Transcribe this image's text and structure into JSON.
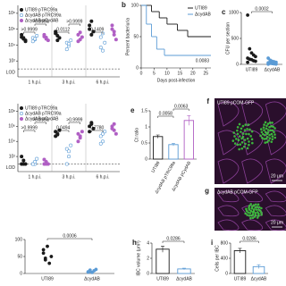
{
  "chart_data": [
    {
      "type": "strip",
      "yscale": "log",
      "ylim": [
        1,
        1000000000
      ],
      "yticks": [
        {
          "value": 100,
          "label": "10²"
        },
        {
          "value": 10000,
          "label": "10⁴"
        },
        {
          "value": 1000000,
          "label": "10⁶"
        },
        {
          "value": 100000000,
          "label": "10⁸"
        }
      ],
      "lod": {
        "value": 10,
        "label": "LOD"
      },
      "groups": [
        "1 h.p.i.",
        "3 h.p.i.",
        "6 h.p.i."
      ],
      "series": [
        {
          "name": "UTI89 pTRC99a",
          "color": "#1a1a1a",
          "values": [
            [
              100000,
              60000,
              30000,
              200000,
              80000,
              40000
            ],
            [
              300000,
              150000,
              80000,
              500000,
              40000
            ],
            [
              3000000,
              10000000,
              500000,
              1000000,
              200000
            ]
          ]
        },
        {
          "name": "ΔcydAB pTRC99a",
          "color": "#5b9bd5",
          "values": [
            [
              80000,
              50000,
              150000,
              30000,
              60000
            ],
            [
              20000,
              8000,
              40000,
              3000,
              15000
            ],
            [
              100000,
              2000,
              20000,
              5000,
              300000
            ]
          ]
        },
        {
          "name": "ΔcydAB pCydAB",
          "color": "#b05fc4",
          "values": [
            [
              120000,
              60000,
              40000,
              200000,
              90000
            ],
            [
              200000,
              50000,
              100000,
              30000,
              400000
            ],
            [
              1000000,
              200000,
              50000,
              3000000,
              500000
            ]
          ]
        }
      ],
      "pvalues": [
        [
          ">0.9999",
          ">0.9999"
        ],
        [
          "0.0112",
          ">0.9999"
        ],
        [
          "0.1409"
        ]
      ]
    },
    {
      "type": "step",
      "letter": "b",
      "ylabel": "Percent bacteriuria",
      "xlabel": "Days post-infection",
      "xlim": [
        0,
        27
      ],
      "xticks": [
        0,
        5,
        10,
        15,
        20,
        25
      ],
      "ylim": [
        0,
        100
      ],
      "yticks": [
        0,
        50,
        100
      ],
      "series": [
        {
          "name": "UTI89",
          "color": "#1a1a1a",
          "x": [
            0,
            4,
            7,
            10,
            14,
            18,
            27
          ],
          "values": [
            100,
            90,
            80,
            70,
            60,
            50,
            50
          ]
        },
        {
          "name": "ΔcydAB",
          "color": "#5b9bd5",
          "x": [
            0,
            2,
            4,
            6,
            9,
            27
          ],
          "values": [
            100,
            70,
            50,
            30,
            20,
            20
          ]
        }
      ],
      "pvalue": "0.0083"
    },
    {
      "type": "strip",
      "letter": "c",
      "ylabel": "CFU per section",
      "ylim": [
        0,
        1000
      ],
      "yticks": [
        0,
        500,
        1000
      ],
      "series": [
        {
          "name": "UTI89",
          "color": "#1a1a1a",
          "values": [
            950,
            300,
            220,
            180,
            150,
            120,
            100,
            90,
            70,
            60,
            40
          ]
        },
        {
          "name": "ΔcydAB",
          "color": "#5b9bd5",
          "values": [
            120,
            80,
            60,
            50,
            40,
            30,
            20,
            15,
            10,
            5,
            3
          ]
        }
      ],
      "pvalue": "0.0002"
    },
    {
      "type": "strip",
      "yscale": "log",
      "ylim": [
        1,
        1000000000
      ],
      "yticks": [
        {
          "value": 100,
          "label": "10²"
        },
        {
          "value": 10000,
          "label": "10⁴"
        },
        {
          "value": 1000000,
          "label": "10⁶"
        },
        {
          "value": 100000000,
          "label": "10⁸"
        }
      ],
      "lod": {
        "value": 10,
        "label": "LOD"
      },
      "groups": [
        "1 h.p.i.",
        "3 h.p.i.",
        "6 h.p.i."
      ],
      "series": [
        {
          "name": "UTI89 pTRC99a",
          "color": "#1a1a1a",
          "values": [
            [
              10,
              30,
              10,
              100,
              10
            ],
            [
              200000,
              100000,
              300000,
              50000,
              80000
            ],
            [
              1000000,
              3000000,
              500000,
              200000,
              2000000
            ]
          ]
        },
        {
          "name": "ΔcydAB pTRC99a",
          "color": "#5b9bd5",
          "values": [
            [
              10,
              10,
              50,
              10,
              20
            ],
            [
              1000,
              100,
              3000,
              10,
              500
            ],
            [
              50000,
              10000,
              200000,
              5000,
              100000
            ]
          ]
        },
        {
          "name": "ΔcydAB pCydAB",
          "color": "#b05fc4",
          "values": [
            [
              10,
              20,
              10,
              40,
              10
            ],
            [
              100000,
              30000,
              200000,
              10000,
              50000
            ],
            [
              500000,
              2000000,
              100000,
              1000000,
              300000
            ]
          ]
        }
      ],
      "pvalues": [
        [
          ">0.9999",
          ">0.9999"
        ],
        [
          "0.0494",
          ">0.9999"
        ],
        [
          "0.7780"
        ]
      ]
    },
    {
      "type": "bar",
      "letter": "e",
      "ylabel": "Ct ratio",
      "ylim": [
        0,
        1.5
      ],
      "yticks": [
        0,
        0.5,
        1,
        1.5
      ],
      "series": [
        {
          "name": "UTI89",
          "color": "#1a1a1a",
          "value": 0.7,
          "error": 0.05
        },
        {
          "name": "ΔcydAB pTRC99a",
          "color": "#5b9bd5",
          "value": 0.45,
          "error": 0.04
        },
        {
          "name": "ΔcydAB pCydAB",
          "color": "#b05fc4",
          "value": 1.2,
          "error": 0.15
        }
      ],
      "pvalues": [
        "0.0058",
        "0.0063"
      ]
    },
    {
      "type": "image",
      "letter": "f",
      "label": "UTI89 pCOM-GFP",
      "scale": "20 μm"
    },
    {
      "type": "image",
      "letter": "g",
      "label": "ΔcydAB pCOM-GFP",
      "scale": "20 μm"
    },
    {
      "type": "strip",
      "ylim": [
        0,
        100
      ],
      "yticks": [
        0,
        50,
        100
      ],
      "series": [
        {
          "name": "UTI89",
          "color": "#1a1a1a",
          "values": [
            60,
            45,
            80,
            30,
            50,
            70,
            40
          ]
        },
        {
          "name": "ΔcydAB",
          "color": "#5b9bd5",
          "values": [
            5,
            10,
            3,
            8,
            12,
            4,
            6
          ]
        }
      ],
      "pvalue": "0.0006"
    },
    {
      "type": "bar",
      "letter": "h",
      "ylabel": "IBC volume (μm³)",
      "ylim": [
        0,
        4
      ],
      "yticks": [
        0,
        2,
        4
      ],
      "series": [
        {
          "name": "UTI89",
          "color": "#1a1a1a",
          "value": 3.2,
          "error": 0.4
        },
        {
          "name": "ΔcydAB",
          "color": "#5b9bd5",
          "value": 0.6,
          "error": 0.1
        }
      ],
      "pvalues": [
        "0.0286"
      ]
    },
    {
      "type": "bar",
      "letter": "i",
      "ylabel": "Cells per IBC",
      "ylim": [
        0,
        800
      ],
      "yticks": [
        0,
        400,
        800
      ],
      "series": [
        {
          "name": "UTI89",
          "color": "#1a1a1a",
          "value": 600,
          "error": 60
        },
        {
          "name": "ΔcydAB",
          "color": "#5b9bd5",
          "value": 180,
          "error": 50
        }
      ],
      "pvalues": [
        "0.0286"
      ]
    }
  ]
}
